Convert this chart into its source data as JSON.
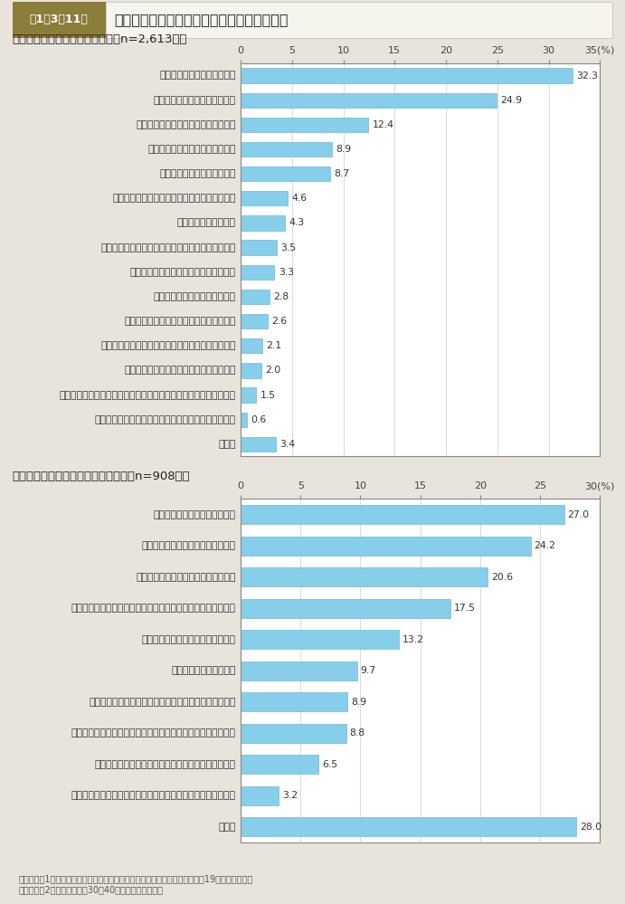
{
  "title_box_color": "#8B7D3A",
  "title_box_text": "第1－3－11図",
  "title_text": "仕事を辞めた理由及び結婚時に離職した理由",
  "bg_color": "#E8E4DC",
  "chart_bg": "#FFFFFF",
  "bar_color": "#87CEEB",
  "bar_edge_color": "#5AABCC",
  "section1_title": "＜仕事を辞めた理由：複数回答（n=2,613）＞",
  "section1_labels": [
    "主として結婚を理由に辞めた",
    "結婚以前に転職を目的に辞めた",
    "主として第一子の出産を理由に辞めた",
    "上記以外の理由で結婚後に辞めた",
    "主として妊娠を理由に辞めた",
    "結婚以前に転職・親の介護以外の理由で辞めた",
    "病気，ストレス，怪我",
    "主として配偶者・パートナーの転勤を理由に辞めた",
    "キャリアアップ，資格取得，就学，留学",
    "職場環境，仕事内容，労働条件",
    "リストラ，経営不振，倒産，契約期間終了",
    "主として育児を理由に辞めた（子どもが未就学児）",
    "主として第二子以降の出産を理由に辞めた",
    "主として自分または配偶者・パートナーの親の介護を理由に辞めた",
    "主として育児を理由に辞めた（子どもが小学校以降）",
    "その他"
  ],
  "section1_values": [
    32.3,
    24.9,
    12.4,
    8.9,
    8.7,
    4.6,
    4.3,
    3.5,
    3.3,
    2.8,
    2.6,
    2.1,
    2.0,
    1.5,
    0.6,
    3.4
  ],
  "section1_xlim": 35,
  "section1_xticks": [
    0,
    5,
    10,
    15,
    20,
    25,
    30,
    35
  ],
  "section1_xticklabels": [
    "0",
    "5",
    "10",
    "15",
    "20",
    "25",
    "30",
    "35(%)"
  ],
  "section2_title": "＜結婚時に離職した理由：複数回答（n=908）＞",
  "section2_labels": [
    "体力・時間的に厳しかったから",
    "辞めるのが当たり前だと思ったから",
    "家事・育児に時間をとりたかったから",
    "両立の努力をしてまで続けたいと思える仕事ではなかったから",
    "配偶者・パートナーが希望したから",
    "子どもが欲しかったから",
    "職場に仕事と家庭の両立を支援する制度がなかったから",
    "同じような状況で仕事を続けている人が職場にいなかったから",
    "職場に仕事と家庭の両立に対する理解がなかったから",
    "配偶者・パートナーの親や自分の親など親族の意向だったから",
    "その他"
  ],
  "section2_values": [
    27.0,
    24.2,
    20.6,
    17.5,
    13.2,
    9.7,
    8.9,
    8.8,
    6.5,
    3.2,
    28.0
  ],
  "section2_xlim": 30,
  "section2_xticks": [
    0,
    5,
    10,
    15,
    20,
    25,
    30
  ],
  "section2_xticklabels": [
    "0",
    "5",
    "10",
    "15",
    "20",
    "25",
    "30(%)"
  ],
  "footnote1": "（備考）　1．内閣府「女性のライフプランニング支援に関する調査」（平成19年）より作成。",
  "footnote2": "　　　　　2．調査対象は，30～40歳代の女性である。",
  "label_fontsize": 7.8,
  "value_fontsize": 7.8,
  "section_title_fontsize": 9.5,
  "tick_fontsize": 8.0,
  "title_fontsize": 11.5,
  "title_num_fontsize": 9.0,
  "footnote_fontsize": 7.0
}
